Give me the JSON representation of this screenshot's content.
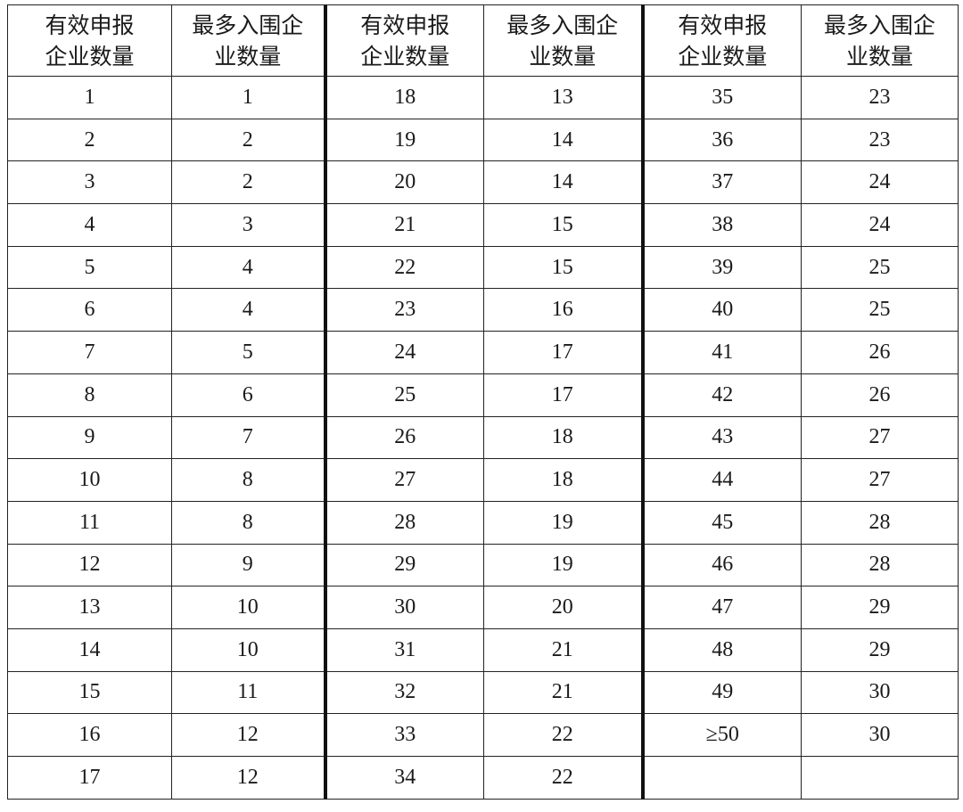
{
  "table": {
    "headers": [
      [
        "有效申报",
        "企业数量"
      ],
      [
        "最多入围企",
        "业数量"
      ],
      [
        "有效申报",
        "企业数量"
      ],
      [
        "最多入围企",
        "业数量"
      ],
      [
        "有效申报",
        "企业数量"
      ],
      [
        "最多入围企",
        "业数量"
      ]
    ],
    "rows": [
      [
        "1",
        "1",
        "18",
        "13",
        "35",
        "23"
      ],
      [
        "2",
        "2",
        "19",
        "14",
        "36",
        "23"
      ],
      [
        "3",
        "2",
        "20",
        "14",
        "37",
        "24"
      ],
      [
        "4",
        "3",
        "21",
        "15",
        "38",
        "24"
      ],
      [
        "5",
        "4",
        "22",
        "15",
        "39",
        "25"
      ],
      [
        "6",
        "4",
        "23",
        "16",
        "40",
        "25"
      ],
      [
        "7",
        "5",
        "24",
        "17",
        "41",
        "26"
      ],
      [
        "8",
        "6",
        "25",
        "17",
        "42",
        "26"
      ],
      [
        "9",
        "7",
        "26",
        "18",
        "43",
        "27"
      ],
      [
        "10",
        "8",
        "27",
        "18",
        "44",
        "27"
      ],
      [
        "11",
        "8",
        "28",
        "19",
        "45",
        "28"
      ],
      [
        "12",
        "9",
        "29",
        "19",
        "46",
        "28"
      ],
      [
        "13",
        "10",
        "30",
        "20",
        "47",
        "29"
      ],
      [
        "14",
        "10",
        "31",
        "21",
        "48",
        "29"
      ],
      [
        "15",
        "11",
        "32",
        "21",
        "49",
        "30"
      ],
      [
        "16",
        "12",
        "33",
        "22",
        "≥50",
        "30"
      ],
      [
        "17",
        "12",
        "34",
        "22",
        "",
        ""
      ]
    ]
  }
}
